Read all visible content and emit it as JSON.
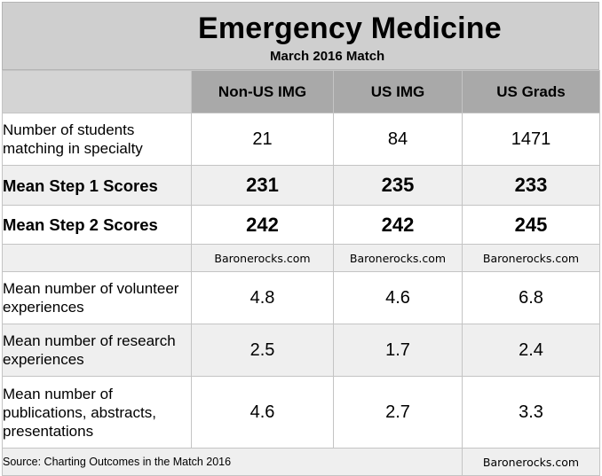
{
  "title": "Emergency Medicine",
  "subtitle": "March 2016 Match",
  "columns": [
    "Non-US IMG",
    "US IMG",
    "US Grads"
  ],
  "rows": [
    {
      "label": "Number of students matching in specialty",
      "values": [
        "21",
        "84",
        "1471"
      ]
    },
    {
      "label": "Mean Step 1 Scores",
      "values": [
        "231",
        "235",
        "233"
      ]
    },
    {
      "label": "Mean Step 2 Scores",
      "values": [
        "242",
        "242",
        "245"
      ]
    },
    {
      "label": "",
      "values": [
        "Baronerocks.com",
        "Baronerocks.com",
        "Baronerocks.com"
      ]
    },
    {
      "label": "Mean number of volunteer experiences",
      "values": [
        "4.8",
        "4.6",
        "6.8"
      ]
    },
    {
      "label": "Mean number of research experiences",
      "values": [
        "2.5",
        "1.7",
        "2.4"
      ]
    },
    {
      "label": "Mean number of publications, abstracts, presentations",
      "values": [
        "4.6",
        "2.7",
        "3.3"
      ]
    }
  ],
  "footer": {
    "source": "Source: Charting Outcomes in the Match 2016",
    "watermark": "Baronerocks.com"
  },
  "colors": {
    "title_bg": "#cfcfcf",
    "header_bg": "#a9a9a9",
    "stripe_bg": "#efefef",
    "border": "#c4c4c4"
  }
}
